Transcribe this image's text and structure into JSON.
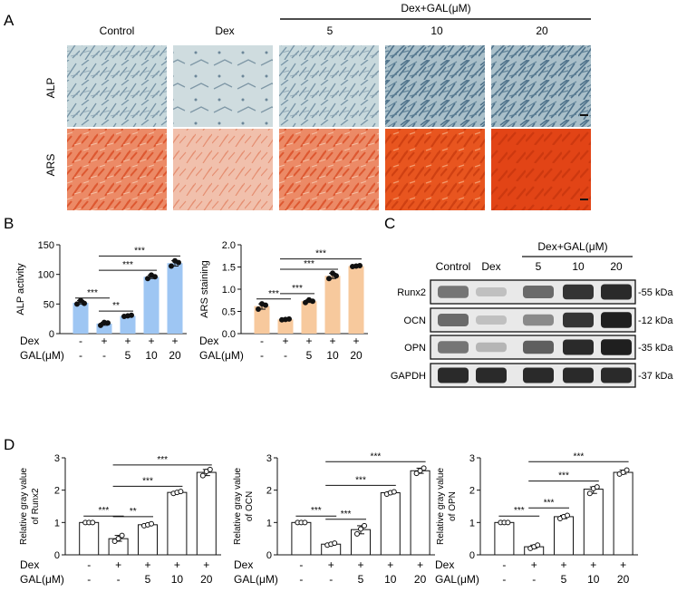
{
  "panels": {
    "A": "A",
    "B": "B",
    "C": "C",
    "D": "D"
  },
  "panelA": {
    "columns": [
      "Control",
      "Dex",
      "5",
      "10",
      "20"
    ],
    "group_label": "Dex+GAL(μM)",
    "rows": [
      "ALP",
      "ARS"
    ],
    "colors": {
      "alp": "#6d8fa3",
      "ars": "#e2502d"
    }
  },
  "conditions": {
    "dex_label": "Dex",
    "gal_label": "GAL(μM)",
    "dex": [
      "-",
      "+",
      "+",
      "+",
      "+"
    ],
    "gal": [
      "-",
      "-",
      "5",
      "10",
      "20"
    ]
  },
  "sig": {
    "s3": "***",
    "s2": "**"
  },
  "charts": [
    {
      "type": "bar",
      "ylabel": "ALP activity",
      "ylim": [
        0,
        150
      ],
      "ticks": [
        "0",
        "50",
        "100",
        "150"
      ],
      "tickvals": [
        0,
        50,
        100,
        150
      ],
      "values": [
        52,
        17,
        30,
        96,
        119
      ],
      "points": [
        [
          50,
          56,
          51
        ],
        [
          14,
          19,
          18
        ],
        [
          29,
          30,
          31
        ],
        [
          93,
          99,
          96
        ],
        [
          114,
          123,
          120
        ]
      ],
      "bar_color": "#9ec6f3",
      "brackets": [
        {
          "from": 0,
          "to": 1,
          "y": 60,
          "label": "***"
        },
        {
          "from": 1,
          "to": 2,
          "y": 38,
          "label": "**"
        },
        {
          "from": 1,
          "to": 3,
          "y": 107,
          "label": "***"
        },
        {
          "from": 1,
          "to": 4,
          "y": 131,
          "label": "***"
        }
      ]
    },
    {
      "type": "bar",
      "ylabel": "ARS staining",
      "ylim": [
        0,
        2
      ],
      "ticks": [
        "0.0",
        "0.5",
        "1.0",
        "1.5",
        "2.0"
      ],
      "tickvals": [
        0,
        0.5,
        1,
        1.5,
        2
      ],
      "values": [
        0.62,
        0.32,
        0.73,
        1.3,
        1.52
      ],
      "points": [
        [
          0.55,
          0.67,
          0.64
        ],
        [
          0.31,
          0.32,
          0.33
        ],
        [
          0.7,
          0.76,
          0.73
        ],
        [
          1.24,
          1.36,
          1.3
        ],
        [
          1.51,
          1.52,
          1.53
        ]
      ],
      "bar_color": "#f7c99d",
      "brackets": [
        {
          "from": 0,
          "to": 1,
          "y": 0.78,
          "label": "***"
        },
        {
          "from": 1,
          "to": 2,
          "y": 0.9,
          "label": "***"
        },
        {
          "from": 1,
          "to": 3,
          "y": 1.45,
          "label": "***"
        },
        {
          "from": 1,
          "to": 4,
          "y": 1.68,
          "label": "***"
        }
      ]
    },
    {
      "type": "bar",
      "ylabel": "Relative gray value of Runx2",
      "ylim": [
        0,
        3
      ],
      "ticks": [
        "0",
        "1",
        "2",
        "3"
      ],
      "tickvals": [
        0,
        1,
        2,
        3
      ],
      "values": [
        1.0,
        0.5,
        0.93,
        1.93,
        2.55
      ],
      "points": [
        [
          1,
          1,
          1
        ],
        [
          0.42,
          0.5,
          0.6
        ],
        [
          0.9,
          0.93,
          0.96
        ],
        [
          1.9,
          1.93,
          1.96
        ],
        [
          2.45,
          2.58,
          2.64
        ]
      ],
      "bar_color": "#ffffff",
      "brackets": [
        {
          "from": 0,
          "to": 1,
          "y": 1.2,
          "label": "***"
        },
        {
          "from": 1,
          "to": 2,
          "y": 1.18,
          "label": "**"
        },
        {
          "from": 1,
          "to": 3,
          "y": 2.12,
          "label": "***"
        },
        {
          "from": 1,
          "to": 4,
          "y": 2.78,
          "label": "***"
        }
      ]
    },
    {
      "type": "bar",
      "ylabel": "Relative gray value of OCN",
      "ylim": [
        0,
        3
      ],
      "ticks": [
        "0",
        "1",
        "2",
        "3"
      ],
      "tickvals": [
        0,
        1,
        2,
        3
      ],
      "values": [
        1.0,
        0.33,
        0.78,
        1.92,
        2.6
      ],
      "points": [
        [
          1,
          1,
          1
        ],
        [
          0.3,
          0.33,
          0.36
        ],
        [
          0.65,
          0.8,
          0.9
        ],
        [
          1.88,
          1.92,
          1.95
        ],
        [
          2.52,
          2.6,
          2.68
        ]
      ],
      "bar_color": "#ffffff",
      "brackets": [
        {
          "from": 0,
          "to": 1,
          "y": 1.2,
          "label": "***"
        },
        {
          "from": 1,
          "to": 2,
          "y": 1.1,
          "label": "***"
        },
        {
          "from": 1,
          "to": 3,
          "y": 2.15,
          "label": "***"
        },
        {
          "from": 1,
          "to": 4,
          "y": 2.88,
          "label": "***"
        }
      ]
    },
    {
      "type": "bar",
      "ylabel": "Relative gray value of OPN",
      "ylim": [
        0,
        3
      ],
      "ticks": [
        "0",
        "1",
        "2",
        "3"
      ],
      "tickvals": [
        0,
        1,
        2,
        3
      ],
      "values": [
        1.0,
        0.25,
        1.18,
        2.03,
        2.55
      ],
      "points": [
        [
          1,
          1,
          1
        ],
        [
          0.2,
          0.25,
          0.3
        ],
        [
          1.12,
          1.18,
          1.22
        ],
        [
          1.9,
          2.05,
          2.1
        ],
        [
          2.5,
          2.55,
          2.62
        ]
      ],
      "bar_color": "#ffffff",
      "brackets": [
        {
          "from": 0,
          "to": 1,
          "y": 1.2,
          "label": "***"
        },
        {
          "from": 1,
          "to": 2,
          "y": 1.45,
          "label": "***"
        },
        {
          "from": 1,
          "to": 3,
          "y": 2.28,
          "label": "***"
        },
        {
          "from": 1,
          "to": 4,
          "y": 2.88,
          "label": "***"
        }
      ]
    }
  ],
  "blot": {
    "columns": [
      "Control",
      "Dex",
      "5",
      "10",
      "20"
    ],
    "group_label": "Dex+GAL(μM)",
    "proteins": [
      "Runx2",
      "OCN",
      "OPN",
      "GAPDH"
    ],
    "sizes": [
      "-55 kDa",
      "-12 kDa",
      "-35 kDa",
      "-37 kDa"
    ],
    "intensity": [
      [
        0.55,
        0.2,
        0.6,
        0.85,
        0.9
      ],
      [
        0.6,
        0.2,
        0.45,
        0.85,
        0.95
      ],
      [
        0.55,
        0.25,
        0.65,
        0.9,
        0.95
      ],
      [
        0.9,
        0.9,
        0.9,
        0.9,
        0.9
      ]
    ]
  }
}
